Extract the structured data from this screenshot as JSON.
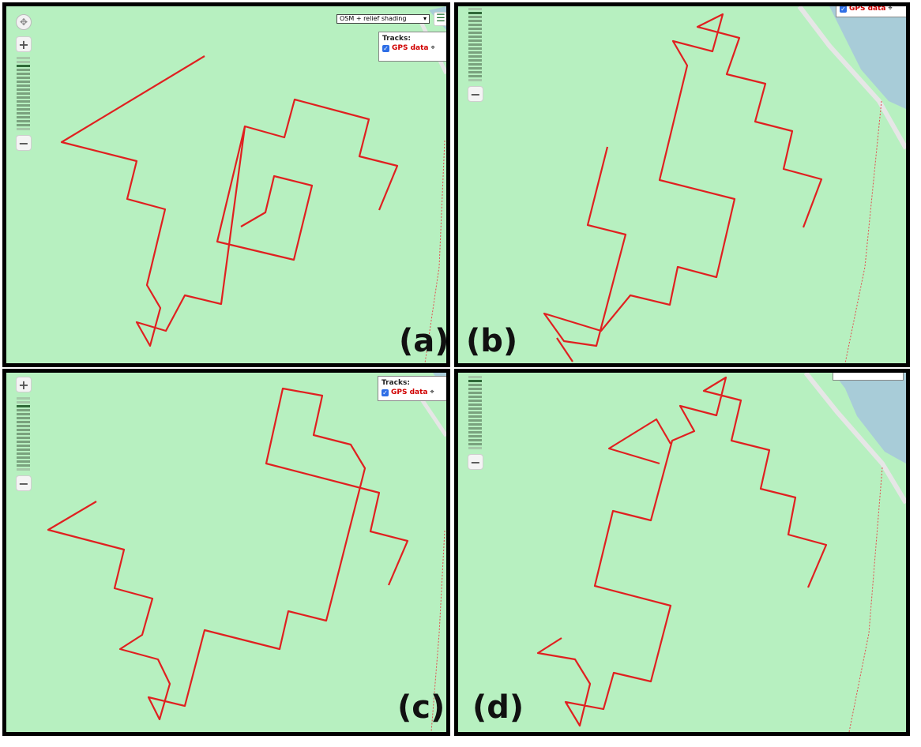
{
  "panels": [
    {
      "id": "a",
      "label": "(a)"
    },
    {
      "id": "b",
      "label": "(b)"
    },
    {
      "id": "c",
      "label": "(c)"
    },
    {
      "id": "d",
      "label": "(d)"
    }
  ],
  "map_controls": {
    "zoom_in": "+",
    "zoom_out": "−",
    "pan_icon": "✥",
    "menu_icon": "☰",
    "basemap_selected": "OSM + relief shading",
    "dropdown_arrow": "▾"
  },
  "layer_switcher": {
    "title": "Tracks:",
    "layer_name": "GPS data",
    "checkbox_mark": "✓",
    "locate_icon": "⌖"
  },
  "colors": {
    "map_land": "#b7f0c0",
    "track": "#e02020",
    "water": "#a8ccd8",
    "road": "#e8e8e8",
    "trail": "#e05050"
  }
}
